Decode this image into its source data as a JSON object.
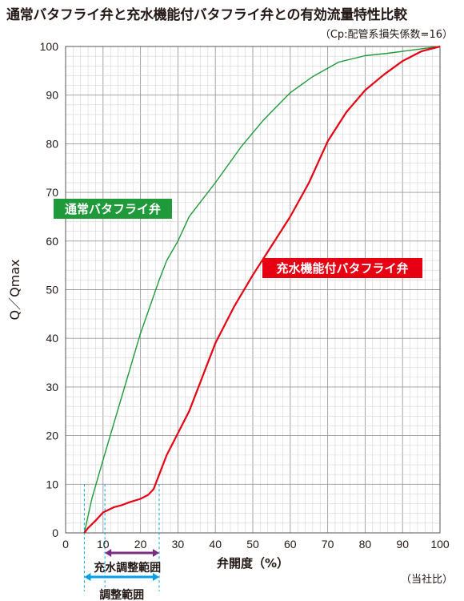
{
  "title": "通常バタフライ弁と充水機能付バタフライ弁との有効流量特性比較",
  "subtitle": "（Cp:配管系損失係数=16）",
  "source": "（当社比）",
  "chart_data": {
    "type": "line",
    "xlabel": "弁開度（%）",
    "ylabel": "Q／Qmax",
    "xlim": [
      0,
      100
    ],
    "ylim": [
      0,
      100
    ],
    "x_ticks": [
      0,
      10,
      20,
      30,
      40,
      50,
      60,
      70,
      80,
      90,
      100
    ],
    "y_ticks": [
      0,
      10,
      20,
      30,
      40,
      50,
      60,
      70,
      80,
      90,
      100
    ],
    "grid": true,
    "series": [
      {
        "name": "通常バタフライ弁",
        "color": "#1f9a3b",
        "x": [
          5,
          7,
          10,
          15,
          20,
          25,
          27,
          30,
          33,
          40,
          47,
          53,
          60,
          66,
          73,
          80,
          86,
          93,
          100
        ],
        "y": [
          0,
          7,
          15,
          28,
          41,
          52,
          56,
          60,
          65,
          72,
          79.5,
          85,
          90.5,
          93.8,
          96.8,
          98.1,
          98.6,
          99.3,
          100
        ]
      },
      {
        "name": "充水機能付バタフライ弁",
        "color": "#e60012",
        "x": [
          5,
          6,
          8,
          10,
          13,
          15,
          17,
          20,
          22,
          23.5,
          25,
          27,
          30,
          33,
          36,
          40,
          45,
          50,
          55,
          60,
          65,
          70,
          75,
          80,
          85,
          90,
          95,
          100
        ],
        "y": [
          0,
          1,
          2.5,
          4.2,
          5.3,
          5.7,
          6.3,
          7,
          7.8,
          9,
          12,
          16,
          20.5,
          25,
          31,
          39,
          46.5,
          53,
          59,
          65,
          72,
          80.5,
          86.5,
          91,
          94.2,
          97,
          99,
          100
        ]
      }
    ],
    "ranges": [
      {
        "label": "充水調整範囲",
        "from": 10.5,
        "to": 25,
        "color": "#7b2c83"
      },
      {
        "label": "調整範囲",
        "from": 5,
        "to": 25,
        "color": "#00a0e9"
      }
    ],
    "reference_lines_x": [
      5,
      10.5,
      25
    ]
  }
}
